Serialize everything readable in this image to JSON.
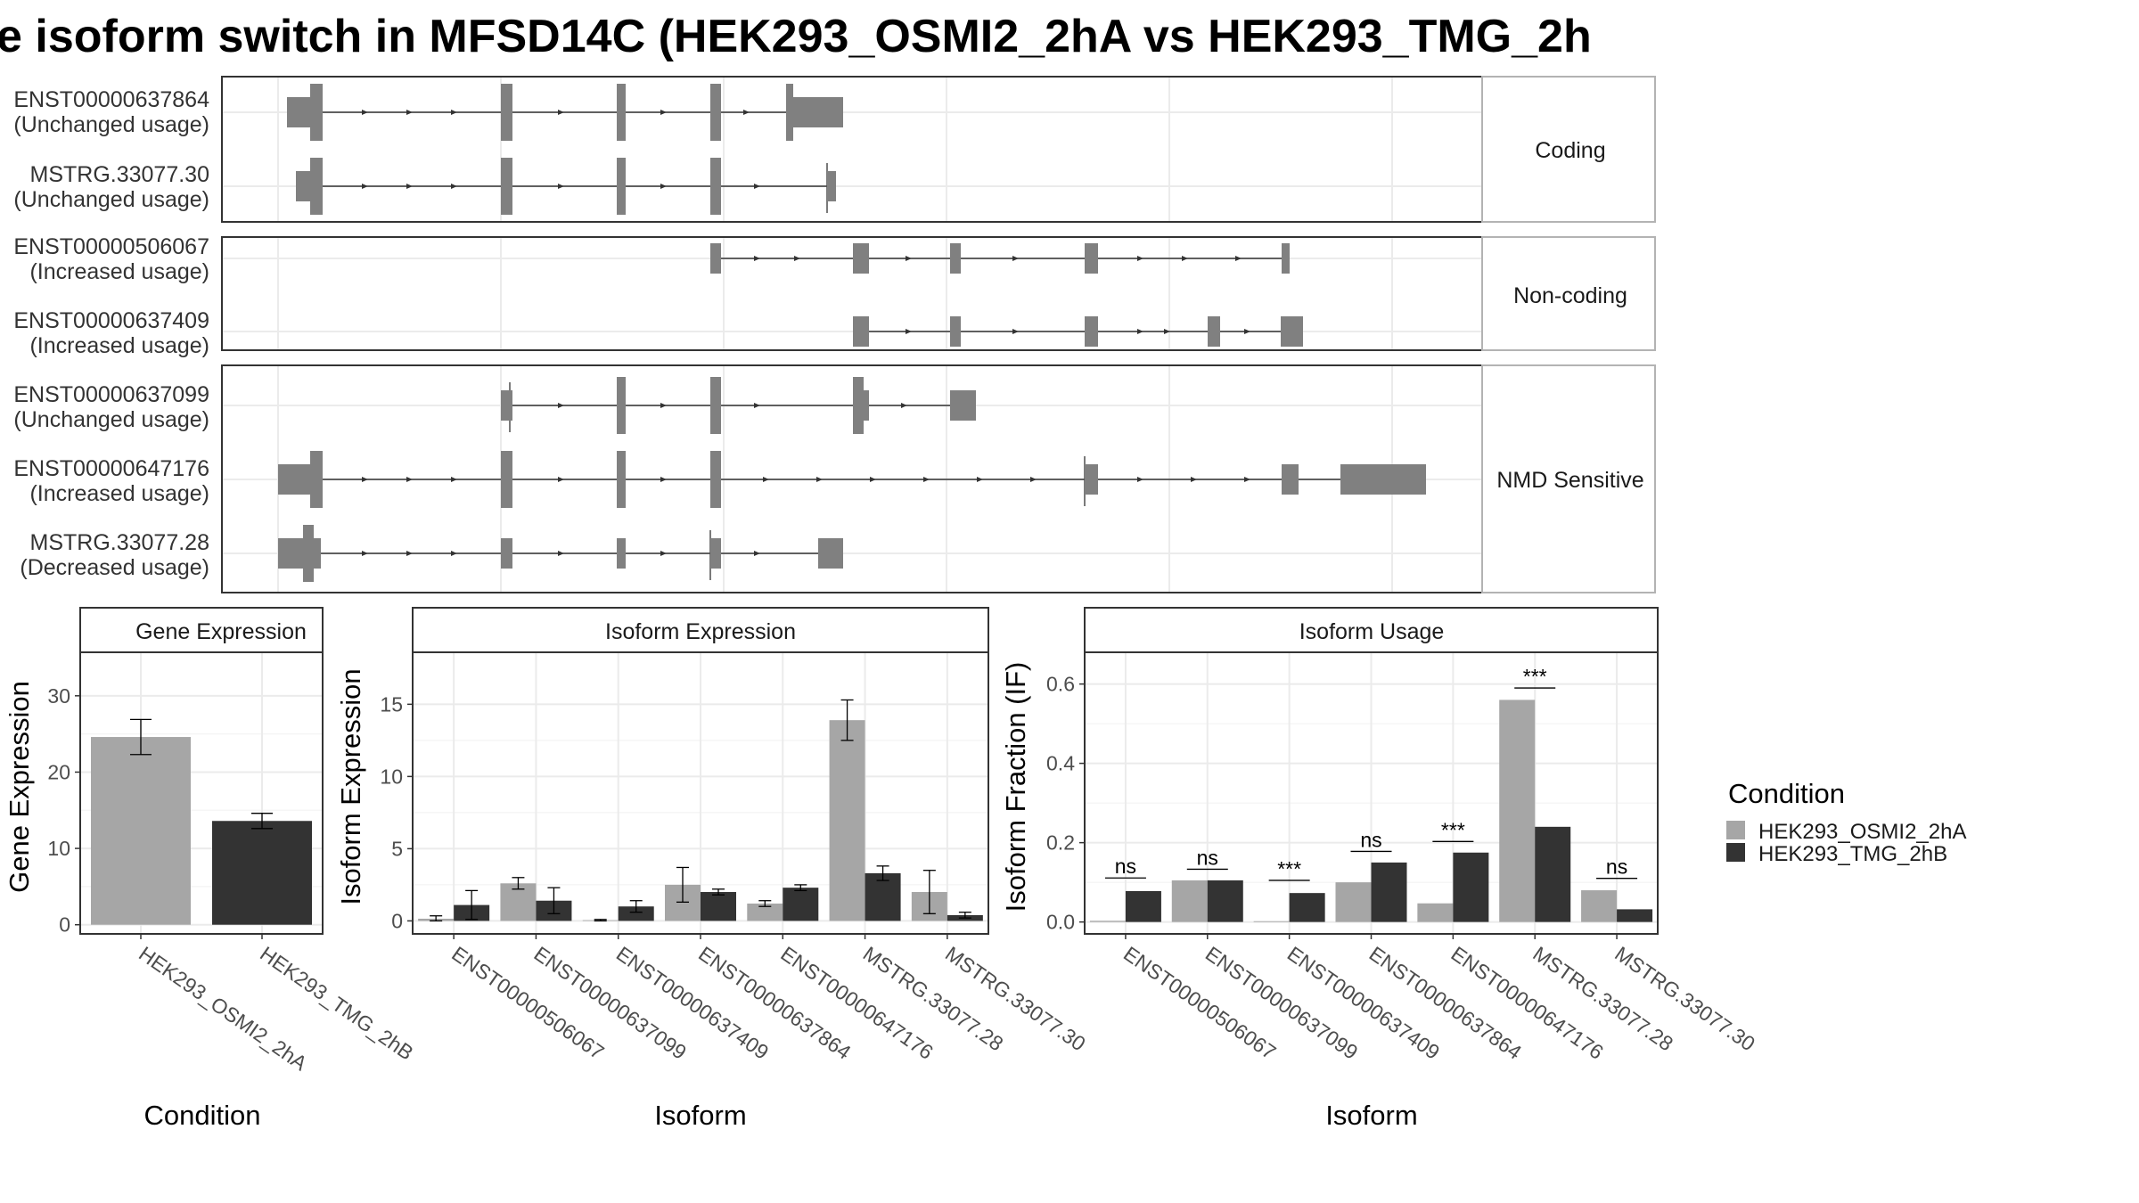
{
  "title": "e isoform switch in MFSD14C (HEK293_OSMI2_2hA vs HEK293_TMG_2h",
  "colors": {
    "cond1": "#a6a6a6",
    "cond2": "#333333",
    "exon": "#808080",
    "strip_bg": "#ffffff",
    "grid": "#ebebeb"
  },
  "structure": {
    "facets": [
      {
        "label": "Coding",
        "isoforms": [
          {
            "line1": "ENST00000637864",
            "line2": "(Unchanged usage)"
          },
          {
            "line1": "MSTRG.33077.30",
            "line2": "(Unchanged usage)"
          }
        ]
      },
      {
        "label": "Non-coding",
        "isoforms": [
          {
            "line1": "ENST00000506067",
            "line2": "(Increased usage)"
          },
          {
            "line1": "ENST00000637409",
            "line2": "(Increased usage)"
          }
        ]
      },
      {
        "label": "NMD Sensitive",
        "isoforms": [
          {
            "line1": "ENST00000637099",
            "line2": "(Unchanged usage)"
          },
          {
            "line1": "ENST00000647176",
            "line2": "(Increased usage)"
          },
          {
            "line1": "MSTRG.33077.28",
            "line2": "(Decreased usage)"
          }
        ]
      }
    ]
  },
  "legend": {
    "title": "Condition",
    "items": [
      "HEK293_OSMI2_2hA",
      "HEK293_TMG_2hB"
    ]
  },
  "chart_data": [
    {
      "type": "bar",
      "title": "Gene Expression",
      "xlabel": "Condition",
      "ylabel": "Gene Expression",
      "categories": [
        "HEK293_OSMI2_2hA",
        "HEK293_TMG_2hB"
      ],
      "values": [
        24.6,
        13.6
      ],
      "errors": [
        [
          22.3,
          26.9
        ],
        [
          12.6,
          14.6
        ]
      ],
      "ylim": [
        -1.2,
        35.7
      ],
      "yticks": [
        0,
        10,
        20,
        30
      ],
      "grid": true
    },
    {
      "type": "bar",
      "title": "Isoform Expression",
      "xlabel": "Isoform",
      "ylabel": "Isoform Expression",
      "categories": [
        "ENST00000506067",
        "ENST00000637099",
        "ENST00000637409",
        "ENST00000637864",
        "ENST00000647176",
        "MSTRG.33077.28",
        "MSTRG.33077.30"
      ],
      "series": [
        {
          "name": "HEK293_OSMI2_2hA",
          "values": [
            0.15,
            2.6,
            0.05,
            2.5,
            1.2,
            13.9,
            2.0
          ],
          "errors": [
            [
              0.0,
              0.35
            ],
            [
              2.2,
              3.0
            ],
            [
              0.0,
              0.1
            ],
            [
              1.3,
              3.7
            ],
            [
              1.0,
              1.4
            ],
            [
              12.5,
              15.3
            ],
            [
              0.5,
              3.5
            ]
          ]
        },
        {
          "name": "HEK293_TMG_2hB",
          "values": [
            1.1,
            1.4,
            1.0,
            2.0,
            2.3,
            3.3,
            0.4
          ],
          "errors": [
            [
              0.1,
              2.1
            ],
            [
              0.5,
              2.3
            ],
            [
              0.6,
              1.4
            ],
            [
              1.8,
              2.2
            ],
            [
              2.1,
              2.5
            ],
            [
              2.8,
              3.8
            ],
            [
              0.2,
              0.6
            ]
          ]
        }
      ],
      "ylim": [
        -0.9,
        18.6
      ],
      "yticks": [
        0,
        5,
        10,
        15
      ],
      "grid": true
    },
    {
      "type": "bar",
      "title": "Isoform Usage",
      "xlabel": "Isoform",
      "ylabel": "Isoform Fraction (IF)",
      "categories": [
        "ENST00000506067",
        "ENST00000637099",
        "ENST00000637409",
        "ENST00000637864",
        "ENST00000647176",
        "MSTRG.33077.28",
        "MSTRG.33077.30"
      ],
      "series": [
        {
          "name": "HEK293_OSMI2_2hA",
          "values": [
            0.003,
            0.105,
            0.002,
            0.1,
            0.047,
            0.56,
            0.08
          ]
        },
        {
          "name": "HEK293_TMG_2hB",
          "values": [
            0.078,
            0.105,
            0.073,
            0.15,
            0.175,
            0.24,
            0.032
          ]
        }
      ],
      "significance": [
        "ns",
        "ns",
        "***",
        "ns",
        "***",
        "***",
        "ns"
      ],
      "sig_heights": [
        0.111,
        0.133,
        0.105,
        0.178,
        0.203,
        0.59,
        0.11
      ],
      "ylim": [
        -0.03,
        0.68
      ],
      "yticks": [
        0.0,
        0.2,
        0.4,
        0.6
      ],
      "ytick_labels": [
        "0.0",
        "0.2",
        "0.4",
        "0.6"
      ],
      "grid": true
    }
  ]
}
